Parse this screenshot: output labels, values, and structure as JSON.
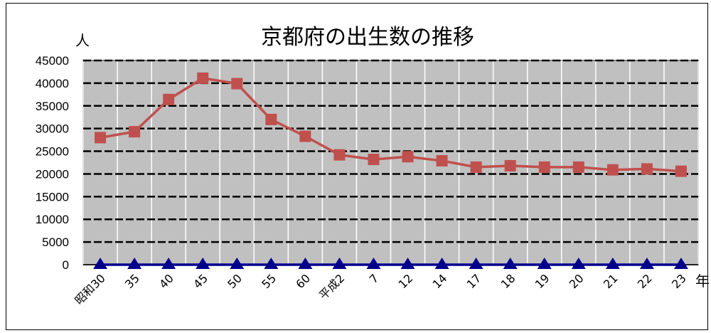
{
  "chart_data": {
    "type": "line",
    "title": "京都府の出生数の推移",
    "ylabel": "人",
    "xlabel": "年",
    "ylim": [
      0,
      45000
    ],
    "yticks": [
      0,
      5000,
      10000,
      15000,
      20000,
      25000,
      30000,
      35000,
      40000,
      45000
    ],
    "categories": [
      "昭和30",
      "35",
      "40",
      "45",
      "50",
      "55",
      "60",
      "平成2",
      "7",
      "12",
      "14",
      "17",
      "18",
      "19",
      "20",
      "21",
      "22",
      "23"
    ],
    "series": [
      {
        "values": [
          28000,
          29300,
          36400,
          41100,
          39900,
          32000,
          28300,
          24200,
          23200,
          23800,
          22900,
          21500,
          21800,
          21500,
          21500,
          20900,
          21100,
          20600
        ],
        "color": "#c0504d",
        "marker": "square"
      },
      {
        "values": [
          0,
          0,
          0,
          0,
          0,
          0,
          0,
          0,
          0,
          0,
          0,
          0,
          0,
          0,
          0,
          0,
          0,
          0
        ],
        "color": "#00008b",
        "marker": "triangle"
      }
    ],
    "grid": true,
    "plot_background": "#c0c0c0",
    "gridline_color": "#000000"
  }
}
